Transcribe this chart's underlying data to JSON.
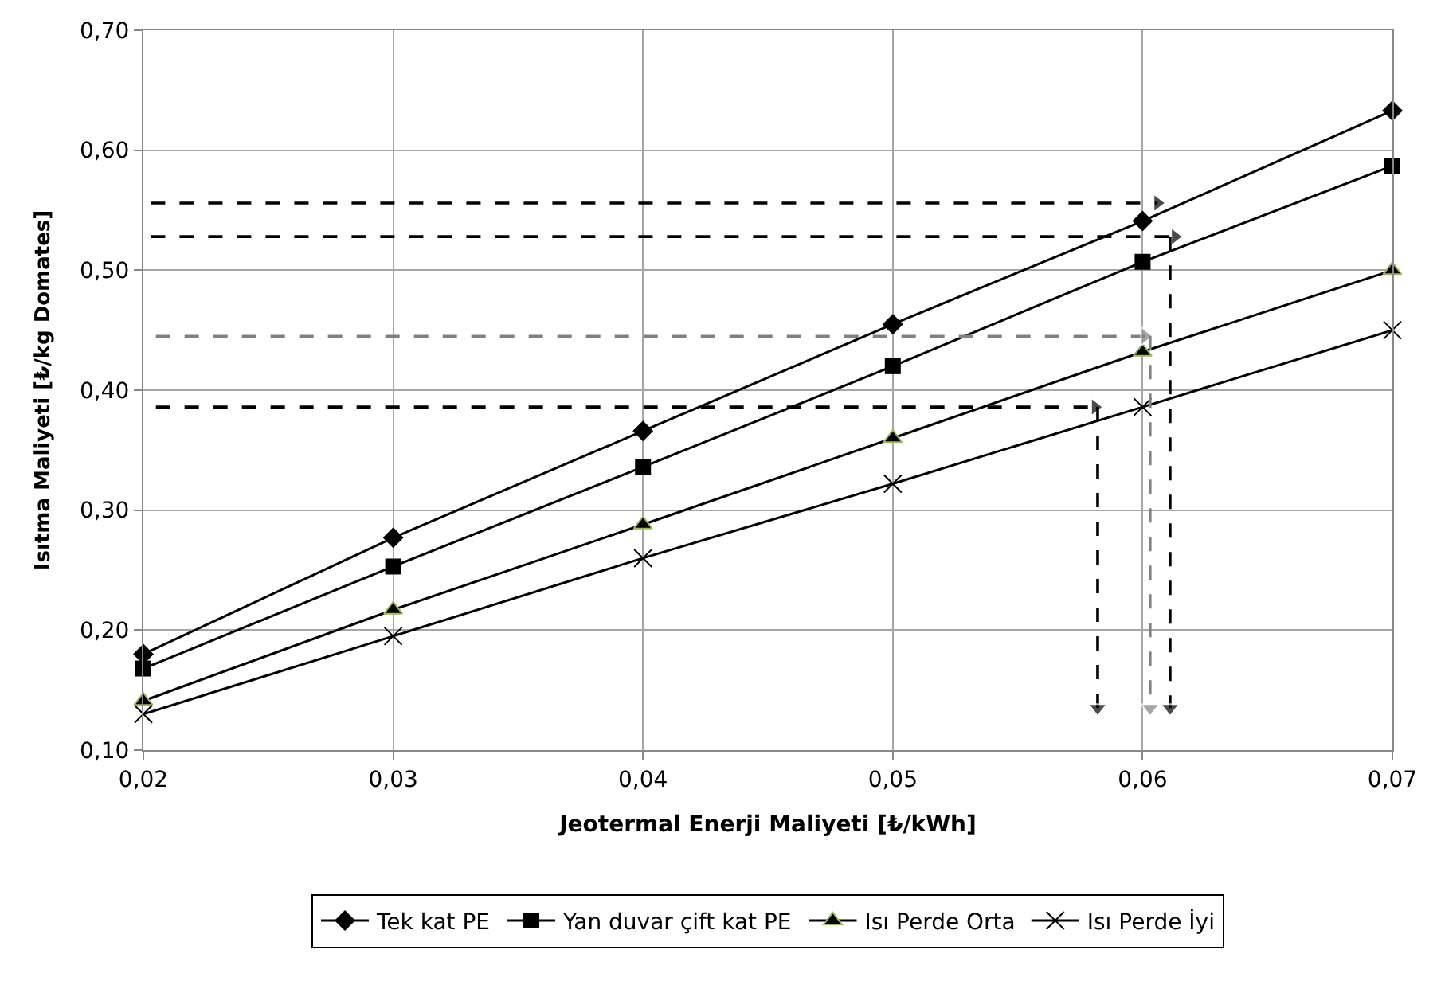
{
  "chart_data": {
    "type": "line",
    "xlabel": "Jeotermal Enerji Maliyeti [₺/kWh]",
    "ylabel": "Isıtma Maliyeti [₺/kg Domates]",
    "x": [
      0.02,
      0.03,
      0.04,
      0.05,
      0.06,
      0.07
    ],
    "series": [
      {
        "name": "Tek kat PE",
        "color": "#000000",
        "marker": "diamond",
        "values": [
          0.18,
          0.277,
          0.366,
          0.455,
          0.541,
          0.633
        ]
      },
      {
        "name": "Yan duvar çift kat PE",
        "color": "#000000",
        "marker": "square",
        "values": [
          0.168,
          0.253,
          0.336,
          0.42,
          0.507,
          0.587
        ]
      },
      {
        "name": "Isı Perde Orta",
        "color": "#000000",
        "marker": "triangle",
        "values": [
          0.141,
          0.217,
          0.288,
          0.36,
          0.432,
          0.5
        ]
      },
      {
        "name": "Isı Perde İyi",
        "color": "#000000",
        "marker": "cross",
        "values": [
          0.13,
          0.195,
          0.26,
          0.322,
          0.386,
          0.45
        ]
      },
      {
        "color": "#000000",
        "marker": "triangle",
        "line_style": "dashed",
        "x": [
          0.0203,
          0.0606
        ],
        "values": [
          0.556,
          0.556
        ]
      },
      {
        "color": "#000000",
        "marker": "triangle",
        "line_style": "dashed",
        "x": [
          0.0203,
          0.0613
        ],
        "values": [
          0.528,
          0.528
        ]
      },
      {
        "color": "#000000",
        "marker": "triangle",
        "line_style": "dashed",
        "x": [
          0.0611,
          0.0611
        ],
        "values": [
          0.528,
          0.135
        ]
      },
      {
        "color": "#808080",
        "marker": "triangle",
        "line_style": "dashed",
        "x": [
          0.0205,
          0.0601
        ],
        "values": [
          0.445,
          0.445
        ]
      },
      {
        "color": "#808080",
        "marker": "triangle",
        "line_style": "dashed",
        "x": [
          0.0603,
          0.0603
        ],
        "values": [
          0.445,
          0.135
        ]
      },
      {
        "color": "#000000",
        "marker": "triangle",
        "line_style": "dashed",
        "x": [
          0.0205,
          0.0581
        ],
        "values": [
          0.386,
          0.386
        ]
      },
      {
        "color": "#000000",
        "marker": "triangle",
        "line_style": "dashed",
        "x": [
          0.0582,
          0.0582
        ],
        "values": [
          0.386,
          0.135
        ]
      }
    ],
    "xlim": [
      0.02,
      0.07
    ],
    "xticks": [
      {
        "value": 0.02,
        "label": "0,02"
      },
      {
        "value": 0.03,
        "label": "0,03"
      },
      {
        "value": 0.04,
        "label": "0,04"
      },
      {
        "value": 0.05,
        "label": "0,05"
      },
      {
        "value": 0.06,
        "label": "0,06"
      },
      {
        "value": 0.07,
        "label": "0,07"
      }
    ],
    "ylim": [
      0.1,
      0.7
    ],
    "yticks": [
      {
        "value": 0.1,
        "label": "0,10"
      },
      {
        "value": 0.2,
        "label": "0,20"
      },
      {
        "value": 0.3,
        "label": "0,30"
      },
      {
        "value": 0.4,
        "label": "0,40"
      },
      {
        "value": 0.5,
        "label": "0,50"
      },
      {
        "value": 0.6,
        "label": "0,60"
      },
      {
        "value": 0.7,
        "label": "0,70"
      }
    ],
    "grid": true,
    "legend": "bottom",
    "line_style": "solid"
  }
}
